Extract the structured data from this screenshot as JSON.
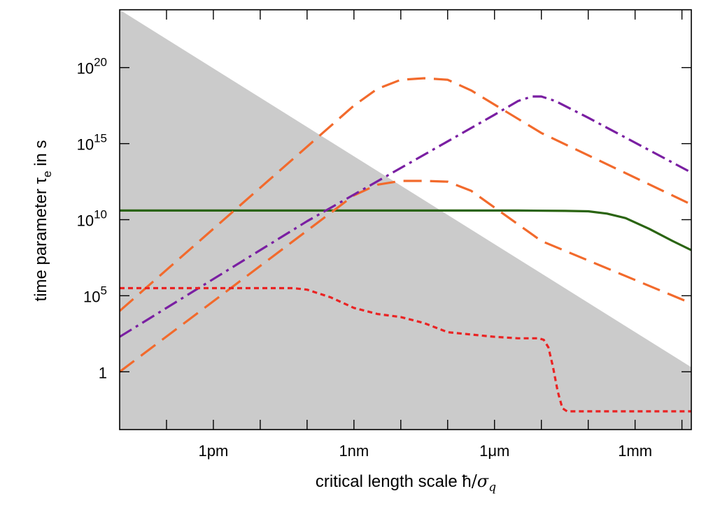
{
  "chart_data": {
    "type": "line",
    "xlabel": "critical length scale ħ/σ_q",
    "xlabel_text": "critical length scale ",
    "xlabel_hbar": "ħ",
    "xlabel_slash": "/",
    "xlabel_sigma": "σ",
    "xlabel_q": "q",
    "ylabel": "time parameter τ_e in s",
    "ylabel_text": "time parameter ",
    "ylabel_tau": "τ",
    "ylabel_e": "e",
    "ylabel_suffix": " in s",
    "x_scale": "log10",
    "y_scale": "log10",
    "xlim_log10": [
      -14,
      -1.8
    ],
    "ylim_log10": [
      -3.8,
      23.8
    ],
    "x_ticks_major": [
      {
        "log10": -12,
        "label": "1pm"
      },
      {
        "log10": -9,
        "label": "1nm"
      },
      {
        "log10": -6,
        "label": "1μm"
      },
      {
        "log10": -3,
        "label": "1mm"
      }
    ],
    "x_ticks_minor_log10": [
      -13,
      -11,
      -10,
      -8,
      -7,
      -5,
      -4,
      -2
    ],
    "y_ticks": [
      {
        "log10": 0,
        "base": "1",
        "exp": ""
      },
      {
        "log10": 5,
        "base": "10",
        "exp": "5"
      },
      {
        "log10": 10,
        "base": "10",
        "exp": "10"
      },
      {
        "log10": 15,
        "base": "10",
        "exp": "15"
      },
      {
        "log10": 20,
        "base": "10",
        "exp": "20"
      }
    ],
    "shaded_region": {
      "color": "#cbcbcb",
      "boundary": [
        [
          -14,
          23.8
        ],
        [
          -1.8,
          0.3
        ]
      ]
    },
    "series": [
      {
        "color": "#2a6411",
        "dash": "solid",
        "points": [
          [
            -14,
            10.6
          ],
          [
            -5.5,
            10.6
          ],
          [
            -4.5,
            10.58
          ],
          [
            -4,
            10.55
          ],
          [
            -3.6,
            10.4
          ],
          [
            -3.2,
            10.1
          ],
          [
            -2.7,
            9.4
          ],
          [
            -2.2,
            8.6
          ],
          [
            -1.8,
            8.0
          ]
        ]
      },
      {
        "color": "#f26a2c",
        "dash": "long",
        "points": [
          [
            -14,
            0
          ],
          [
            -9,
            11.6
          ],
          [
            -8.5,
            12.3
          ],
          [
            -8,
            12.55
          ],
          [
            -7.5,
            12.55
          ],
          [
            -7,
            12.5
          ],
          [
            -6.5,
            11.9
          ],
          [
            -5,
            8.6
          ],
          [
            -1.8,
            4.5
          ]
        ]
      },
      {
        "color": "#f26a2c",
        "dash": "long",
        "points": [
          [
            -14,
            4
          ],
          [
            -9,
            17.5
          ],
          [
            -8.5,
            18.6
          ],
          [
            -8,
            19.2
          ],
          [
            -7.5,
            19.3
          ],
          [
            -7,
            19.2
          ],
          [
            -6.5,
            18.5
          ],
          [
            -5,
            15.7
          ],
          [
            -1.8,
            11.0
          ]
        ]
      },
      {
        "color": "#7a1fa2",
        "dash": "dashdot",
        "points": [
          [
            -14,
            2.3
          ],
          [
            -10,
            9.9
          ],
          [
            -6,
            16.9
          ],
          [
            -5.5,
            17.8
          ],
          [
            -5.2,
            18.1
          ],
          [
            -5.0,
            18.1
          ],
          [
            -4.7,
            17.8
          ],
          [
            -4,
            16.7
          ],
          [
            -1.8,
            13.1
          ]
        ]
      },
      {
        "color": "#ea2323",
        "dash": "dotted",
        "points": [
          [
            -14,
            5.5
          ],
          [
            -11,
            5.5
          ],
          [
            -10.3,
            5.5
          ],
          [
            -10,
            5.4
          ],
          [
            -9.5,
            4.9
          ],
          [
            -9,
            4.2
          ],
          [
            -8.5,
            3.8
          ],
          [
            -8,
            3.6
          ],
          [
            -7.5,
            3.2
          ],
          [
            -7,
            2.6
          ],
          [
            -6.5,
            2.45
          ],
          [
            -6,
            2.3
          ],
          [
            -5.5,
            2.2
          ],
          [
            -5.05,
            2.2
          ],
          [
            -4.95,
            2.1
          ],
          [
            -4.85,
            1.6
          ],
          [
            -4.75,
            0.3
          ],
          [
            -4.65,
            -1.3
          ],
          [
            -4.55,
            -2.4
          ],
          [
            -4.45,
            -2.6
          ],
          [
            -1.8,
            -2.6
          ]
        ]
      }
    ],
    "grid": false,
    "legend": "none"
  }
}
